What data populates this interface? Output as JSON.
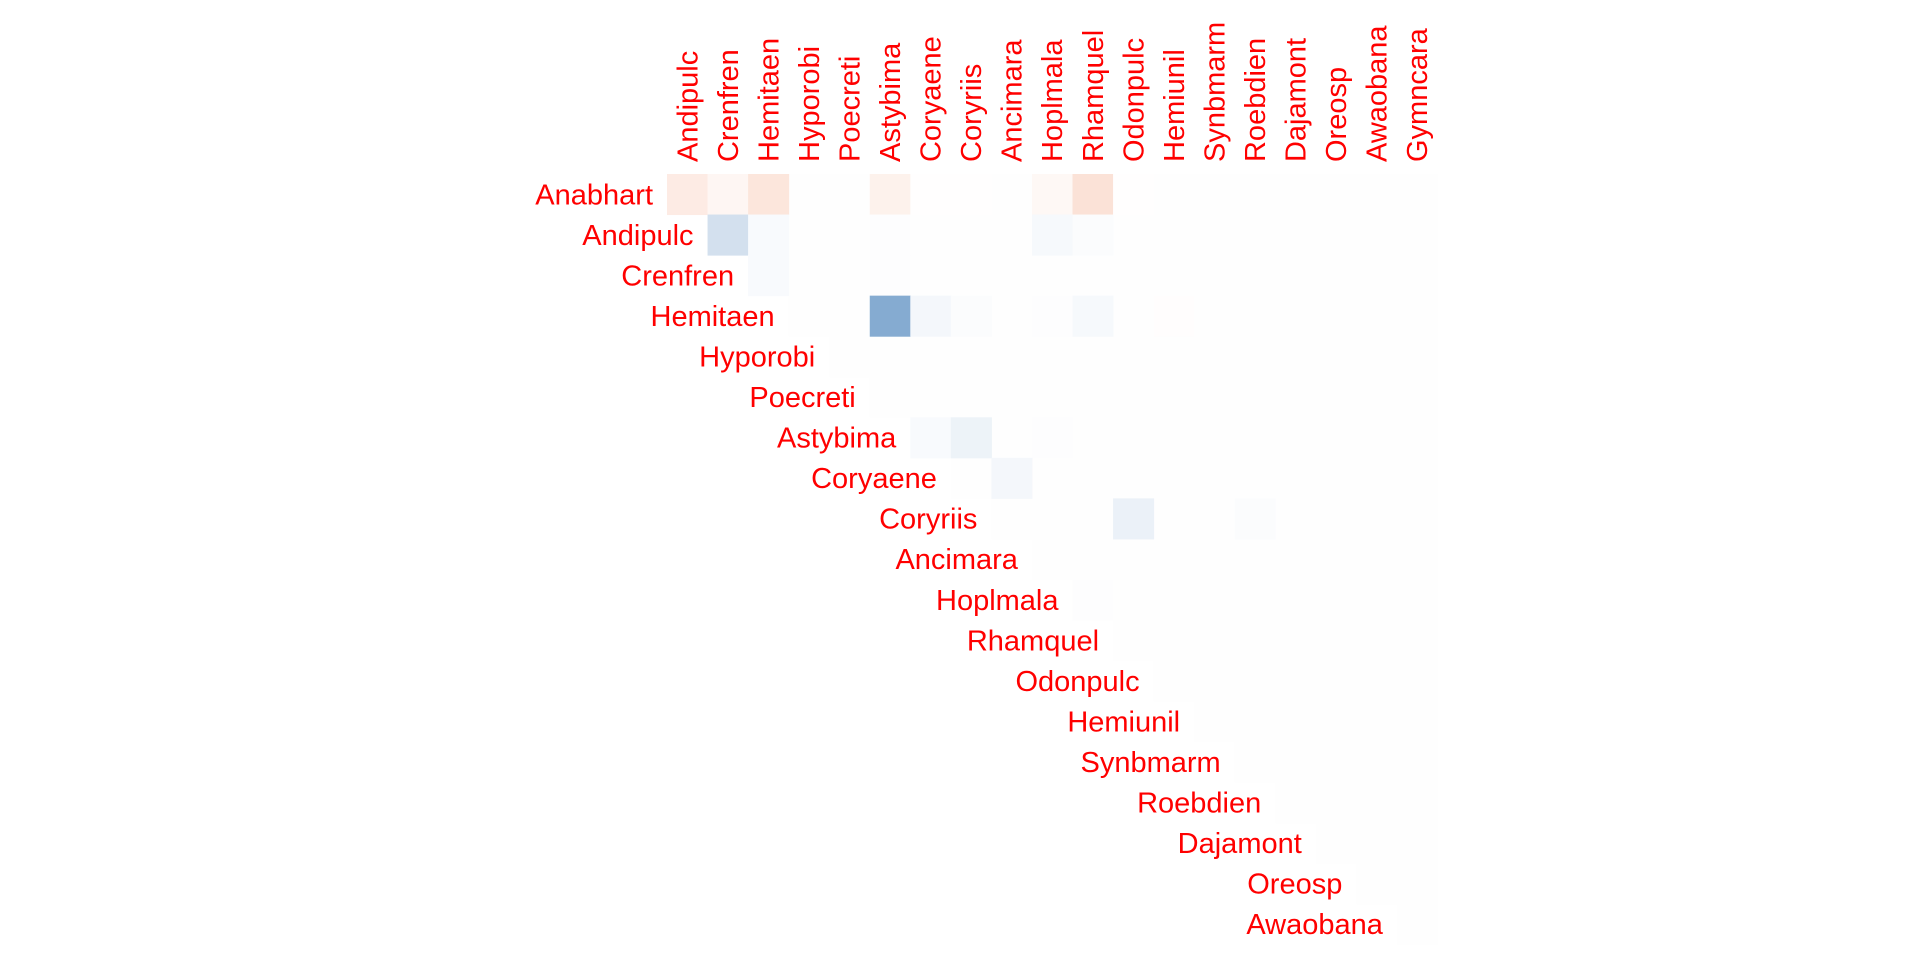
{
  "chart_data": {
    "type": "heatmap",
    "layout": "upper-triangle correlation plot",
    "label_color": "#ff0000",
    "colors": {
      "positive": "#f4a582",
      "negative": "#2166ac",
      "zero": "#ffffff"
    },
    "value_range": [
      -1,
      1
    ],
    "legend": "none",
    "grid": false,
    "row_labels": [
      "Anabhart",
      "Andipulc",
      "Crenfren",
      "Hemitaen",
      "Hyporobi",
      "Poecreti",
      "Astybima",
      "Coryaene",
      "Coryriis",
      "Ancimara",
      "Hoplmala",
      "Rhamquel",
      "Odonpulc",
      "Hemiunil",
      "Synbmarm",
      "Roebdien",
      "Dajamont",
      "Oreosp",
      "Awaobana"
    ],
    "col_labels": [
      "Andipulc",
      "Crenfren",
      "Hemitaen",
      "Hyporobi",
      "Poecreti",
      "Astybima",
      "Coryaene",
      "Coryriis",
      "Ancimara",
      "Hoplmala",
      "Rhamquel",
      "Odonpulc",
      "Hemiunil",
      "Synbmarm",
      "Roebdien",
      "Dajamont",
      "Oreosp",
      "Awaobana",
      "Gymncara"
    ],
    "cells": [
      {
        "row": "Anabhart",
        "col": "Andipulc",
        "value": 0.22
      },
      {
        "row": "Anabhart",
        "col": "Crenfren",
        "value": 0.1
      },
      {
        "row": "Anabhart",
        "col": "Hemitaen",
        "value": 0.28
      },
      {
        "row": "Anabhart",
        "col": "Astybima",
        "value": 0.15
      },
      {
        "row": "Anabhart",
        "col": "Coryaene",
        "value": 0.01
      },
      {
        "row": "Anabhart",
        "col": "Coryriis",
        "value": 0.01
      },
      {
        "row": "Anabhart",
        "col": "Hoplmala",
        "value": 0.08
      },
      {
        "row": "Anabhart",
        "col": "Rhamquel",
        "value": 0.32
      },
      {
        "row": "Anabhart",
        "col": "Odonpulc",
        "value": 0.01
      },
      {
        "row": "Andipulc",
        "col": "Crenfren",
        "value": -0.2
      },
      {
        "row": "Andipulc",
        "col": "Hemitaen",
        "value": -0.03
      },
      {
        "row": "Andipulc",
        "col": "Astybima",
        "value": -0.01
      },
      {
        "row": "Andipulc",
        "col": "Hoplmala",
        "value": -0.04
      },
      {
        "row": "Andipulc",
        "col": "Rhamquel",
        "value": -0.02
      },
      {
        "row": "Crenfren",
        "col": "Hemitaen",
        "value": -0.03
      },
      {
        "row": "Crenfren",
        "col": "Astybima",
        "value": -0.01
      },
      {
        "row": "Hemitaen",
        "col": "Astybima",
        "value": -0.55
      },
      {
        "row": "Hemitaen",
        "col": "Coryaene",
        "value": -0.05
      },
      {
        "row": "Hemitaen",
        "col": "Coryriis",
        "value": -0.02
      },
      {
        "row": "Hemitaen",
        "col": "Hoplmala",
        "value": -0.01
      },
      {
        "row": "Hemitaen",
        "col": "Rhamquel",
        "value": -0.04
      },
      {
        "row": "Hemitaen",
        "col": "Hemiunil",
        "value": 0.02
      },
      {
        "row": "Astybima",
        "col": "Coryaene",
        "value": -0.03
      },
      {
        "row": "Astybima",
        "col": "Coryriis",
        "value": -0.08
      },
      {
        "row": "Astybima",
        "col": "Hoplmala",
        "value": -0.01
      },
      {
        "row": "Coryaene",
        "col": "Ancimara",
        "value": -0.05
      },
      {
        "row": "Coryriis",
        "col": "Odonpulc",
        "value": -0.09
      },
      {
        "row": "Coryriis",
        "col": "Roebdien",
        "value": -0.02
      },
      {
        "row": "Hoplmala",
        "col": "Rhamquel",
        "value": -0.01
      }
    ]
  }
}
